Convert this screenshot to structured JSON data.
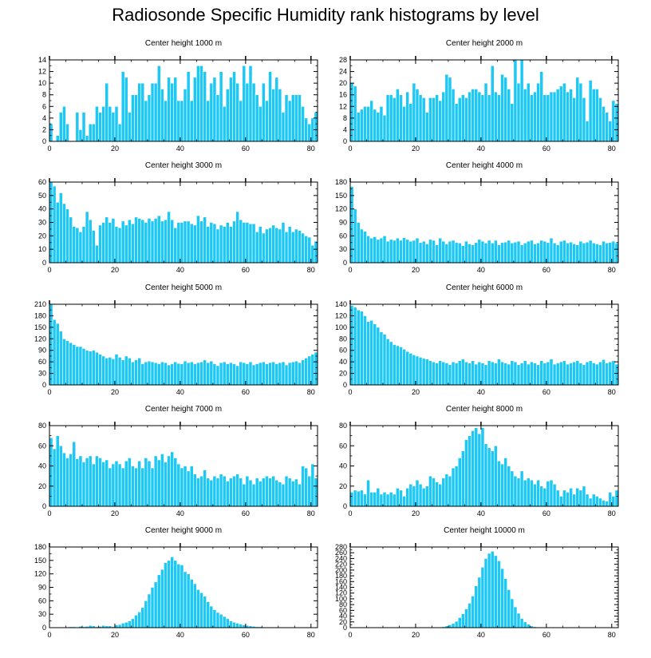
{
  "title": "Radiosonde Specific Humidity rank histograms by level",
  "colors": {
    "bar": "#1EC8F4",
    "bar_edge": "#ffffff",
    "axis": "#000000"
  },
  "chart_data": [
    {
      "type": "bar",
      "title": "Center height 1000 m",
      "xlabel": "",
      "ylabel": "",
      "xlim": [
        0,
        82
      ],
      "ylim": [
        0,
        14
      ],
      "xticks": [
        0,
        20,
        40,
        60,
        80
      ],
      "yticks": [
        0,
        2,
        4,
        6,
        8,
        10,
        12,
        14
      ],
      "values": [
        3,
        0,
        1,
        5,
        6,
        3,
        0,
        0,
        5,
        2,
        5,
        1,
        3,
        3,
        6,
        5,
        6,
        10,
        6,
        5,
        6,
        3,
        12,
        11,
        5,
        8,
        8,
        10,
        10,
        7,
        8,
        10,
        10,
        13,
        9,
        7,
        11,
        10,
        11,
        7,
        7,
        9,
        12,
        7,
        11,
        13,
        13,
        12,
        7,
        10,
        11,
        8,
        12,
        6,
        9,
        11,
        12,
        10,
        7,
        13,
        10,
        13,
        10,
        8,
        6,
        10,
        7,
        12,
        9,
        11,
        9,
        5,
        8,
        7,
        8,
        8,
        8,
        6,
        4,
        3,
        4,
        5
      ]
    },
    {
      "type": "bar",
      "title": "Center height 2000 m",
      "xlabel": "",
      "ylabel": "",
      "xlim": [
        0,
        82
      ],
      "ylim": [
        0,
        28
      ],
      "xticks": [
        0,
        20,
        40,
        60,
        80
      ],
      "yticks": [
        0,
        4,
        8,
        12,
        16,
        20,
        24,
        28
      ],
      "values": [
        20,
        19,
        10,
        11,
        12,
        12,
        14,
        11,
        10,
        12,
        9,
        16,
        16,
        15,
        18,
        16,
        12,
        17,
        13,
        20,
        18,
        16,
        15,
        10,
        15,
        15,
        16,
        14,
        17,
        23,
        22,
        18,
        13,
        15,
        16,
        15,
        17,
        18,
        18,
        17,
        16,
        20,
        16,
        26,
        17,
        16,
        23,
        22,
        18,
        13,
        28,
        20,
        28,
        18,
        20,
        16,
        17,
        20,
        24,
        16,
        16,
        17,
        17,
        18,
        19,
        20,
        17,
        18,
        15,
        22,
        20,
        15,
        7,
        21,
        18,
        18,
        15,
        12,
        10,
        7,
        14,
        13
      ]
    },
    {
      "type": "bar",
      "title": "Center height 3000 m",
      "xlabel": "",
      "ylabel": "",
      "xlim": [
        0,
        82
      ],
      "ylim": [
        0,
        60
      ],
      "xticks": [
        0,
        20,
        40,
        60,
        80
      ],
      "yticks": [
        0,
        10,
        20,
        30,
        40,
        50,
        60
      ],
      "values": [
        60,
        57,
        45,
        52,
        44,
        40,
        34,
        27,
        26,
        23,
        27,
        38,
        32,
        24,
        13,
        28,
        30,
        34,
        30,
        33,
        27,
        26,
        31,
        28,
        32,
        29,
        34,
        33,
        32,
        30,
        33,
        31,
        33,
        35,
        31,
        32,
        38,
        32,
        26,
        30,
        30,
        31,
        31,
        29,
        28,
        35,
        31,
        34,
        27,
        30,
        29,
        25,
        28,
        27,
        30,
        27,
        31,
        38,
        32,
        30,
        30,
        29,
        29,
        23,
        27,
        22,
        25,
        26,
        28,
        26,
        25,
        30,
        23,
        27,
        23,
        25,
        24,
        22,
        20,
        19,
        13,
        16
      ]
    },
    {
      "type": "bar",
      "title": "Center height 4000 m",
      "xlabel": "",
      "ylabel": "",
      "xlim": [
        0,
        82
      ],
      "ylim": [
        0,
        180
      ],
      "xticks": [
        0,
        20,
        40,
        60,
        80
      ],
      "yticks": [
        0,
        30,
        60,
        90,
        120,
        150,
        180
      ],
      "values": [
        170,
        120,
        90,
        75,
        70,
        60,
        55,
        58,
        52,
        55,
        60,
        48,
        52,
        50,
        55,
        50,
        56,
        52,
        48,
        50,
        55,
        45,
        48,
        42,
        52,
        50,
        40,
        55,
        48,
        42,
        48,
        50,
        45,
        44,
        38,
        48,
        42,
        40,
        45,
        52,
        48,
        44,
        50,
        44,
        50,
        40,
        45,
        46,
        50,
        44,
        46,
        48,
        40,
        44,
        48,
        50,
        42,
        44,
        50,
        48,
        45,
        55,
        44,
        40,
        48,
        50,
        44,
        46,
        42,
        40,
        48,
        44,
        46,
        50,
        44,
        42,
        40,
        48,
        44,
        45,
        48,
        44
      ]
    },
    {
      "type": "bar",
      "title": "Center height 5000 m",
      "xlabel": "",
      "ylabel": "",
      "xlim": [
        0,
        82
      ],
      "ylim": [
        0,
        210
      ],
      "xticks": [
        0,
        20,
        40,
        60,
        80
      ],
      "yticks": [
        0,
        30,
        60,
        90,
        120,
        150,
        180,
        210
      ],
      "values": [
        210,
        170,
        160,
        140,
        120,
        115,
        110,
        105,
        100,
        100,
        95,
        90,
        88,
        90,
        85,
        80,
        75,
        70,
        72,
        68,
        80,
        72,
        65,
        75,
        70,
        60,
        65,
        70,
        55,
        60,
        62,
        60,
        58,
        55,
        60,
        58,
        52,
        55,
        60,
        56,
        55,
        62,
        58,
        60,
        55,
        58,
        60,
        65,
        58,
        62,
        55,
        50,
        58,
        60,
        55,
        58,
        55,
        50,
        60,
        58,
        55,
        60,
        52,
        55,
        58,
        60,
        55,
        58,
        60,
        55,
        58,
        60,
        52,
        58,
        60,
        62,
        58,
        65,
        70,
        75,
        80,
        85
      ]
    },
    {
      "type": "bar",
      "title": "Center height 6000 m",
      "xlabel": "",
      "ylabel": "",
      "xlim": [
        0,
        82
      ],
      "ylim": [
        0,
        140
      ],
      "xticks": [
        0,
        20,
        40,
        60,
        80
      ],
      "yticks": [
        0,
        20,
        40,
        60,
        80,
        100,
        120,
        140
      ],
      "values": [
        138,
        135,
        130,
        128,
        120,
        110,
        112,
        106,
        100,
        92,
        88,
        80,
        75,
        70,
        68,
        66,
        62,
        58,
        55,
        52,
        50,
        48,
        46,
        45,
        42,
        40,
        38,
        42,
        40,
        38,
        35,
        40,
        38,
        42,
        45,
        40,
        38,
        42,
        36,
        40,
        38,
        35,
        42,
        40,
        38,
        45,
        40,
        38,
        36,
        42,
        40,
        35,
        38,
        42,
        36,
        40,
        38,
        35,
        42,
        38,
        40,
        45,
        36,
        38,
        40,
        42,
        36,
        38,
        40,
        42,
        38,
        35,
        40,
        42,
        38,
        36,
        40,
        44,
        38,
        40,
        42,
        36
      ]
    },
    {
      "type": "bar",
      "title": "Center height 7000 m",
      "xlabel": "",
      "ylabel": "",
      "xlim": [
        0,
        82
      ],
      "ylim": [
        0,
        80
      ],
      "xticks": [
        0,
        20,
        40,
        60,
        80
      ],
      "yticks": [
        0,
        20,
        40,
        60,
        80
      ],
      "values": [
        68,
        57,
        70,
        60,
        53,
        48,
        52,
        64,
        47,
        50,
        44,
        48,
        50,
        42,
        50,
        48,
        44,
        46,
        38,
        42,
        45,
        42,
        38,
        45,
        48,
        40,
        38,
        45,
        38,
        48,
        45,
        38,
        50,
        46,
        52,
        44,
        50,
        54,
        48,
        42,
        38,
        40,
        35,
        40,
        32,
        28,
        30,
        36,
        28,
        26,
        30,
        28,
        32,
        30,
        25,
        28,
        30,
        32,
        28,
        22,
        30,
        26,
        22,
        28,
        25,
        28,
        30,
        28,
        30,
        26,
        24,
        22,
        30,
        28,
        25,
        27,
        22,
        40,
        38,
        30,
        42,
        28
      ]
    },
    {
      "type": "bar",
      "title": "Center height 8000 m",
      "xlabel": "",
      "ylabel": "",
      "xlim": [
        0,
        82
      ],
      "ylim": [
        0,
        80
      ],
      "xticks": [
        0,
        20,
        40,
        60,
        80
      ],
      "yticks": [
        0,
        20,
        40,
        60,
        80
      ],
      "values": [
        14,
        16,
        15,
        16,
        12,
        26,
        14,
        14,
        18,
        12,
        14,
        12,
        14,
        12,
        18,
        16,
        10,
        18,
        22,
        20,
        26,
        22,
        18,
        20,
        30,
        28,
        24,
        22,
        28,
        32,
        30,
        38,
        40,
        48,
        55,
        66,
        70,
        75,
        78,
        72,
        78,
        62,
        58,
        55,
        60,
        45,
        42,
        48,
        40,
        35,
        30,
        28,
        35,
        26,
        28,
        26,
        22,
        26,
        20,
        18,
        25,
        26,
        22,
        16,
        10,
        16,
        14,
        18,
        12,
        18,
        16,
        20,
        12,
        8,
        12,
        10,
        8,
        6,
        5,
        14,
        10,
        16
      ]
    },
    {
      "type": "bar",
      "title": "Center height 9000 m",
      "xlabel": "",
      "ylabel": "",
      "xlim": [
        0,
        82
      ],
      "ylim": [
        0,
        180
      ],
      "xticks": [
        0,
        20,
        40,
        60,
        80
      ],
      "yticks": [
        0,
        30,
        60,
        90,
        120,
        150,
        180
      ],
      "values": [
        0,
        0,
        0,
        0,
        0,
        0,
        2,
        2,
        1,
        3,
        2,
        3,
        5,
        4,
        2,
        3,
        5,
        4,
        4,
        2,
        6,
        7,
        10,
        12,
        15,
        20,
        28,
        35,
        45,
        60,
        75,
        90,
        102,
        118,
        130,
        145,
        150,
        158,
        150,
        142,
        140,
        125,
        120,
        108,
        98,
        85,
        78,
        70,
        58,
        48,
        40,
        34,
        30,
        25,
        20,
        15,
        12,
        10,
        8,
        6,
        5,
        4,
        3,
        2,
        2,
        1,
        1,
        1,
        0,
        1,
        0,
        0,
        0,
        0,
        0,
        0,
        0,
        0,
        0,
        0,
        0,
        0
      ]
    },
    {
      "type": "bar",
      "title": "Center height 10000 m",
      "xlabel": "",
      "ylabel": "",
      "xlim": [
        0,
        82
      ],
      "ylim": [
        0,
        280
      ],
      "xticks": [
        0,
        20,
        40,
        60,
        80
      ],
      "yticks": [
        0,
        20,
        40,
        60,
        80,
        100,
        120,
        140,
        160,
        180,
        200,
        220,
        240,
        260,
        280
      ],
      "values": [
        0,
        0,
        0,
        0,
        0,
        0,
        0,
        0,
        0,
        0,
        0,
        0,
        0,
        0,
        0,
        0,
        0,
        0,
        0,
        0,
        0,
        0,
        0,
        0,
        0,
        0,
        0,
        1,
        3,
        6,
        10,
        15,
        22,
        35,
        48,
        65,
        85,
        110,
        145,
        175,
        210,
        240,
        258,
        265,
        250,
        232,
        205,
        170,
        132,
        100,
        72,
        50,
        32,
        20,
        12,
        6,
        3,
        2,
        1,
        0,
        0,
        0,
        0,
        0,
        0,
        0,
        0,
        0,
        0,
        0,
        0,
        0,
        0,
        0,
        0,
        0,
        0,
        0,
        0,
        0,
        0,
        0
      ]
    }
  ]
}
